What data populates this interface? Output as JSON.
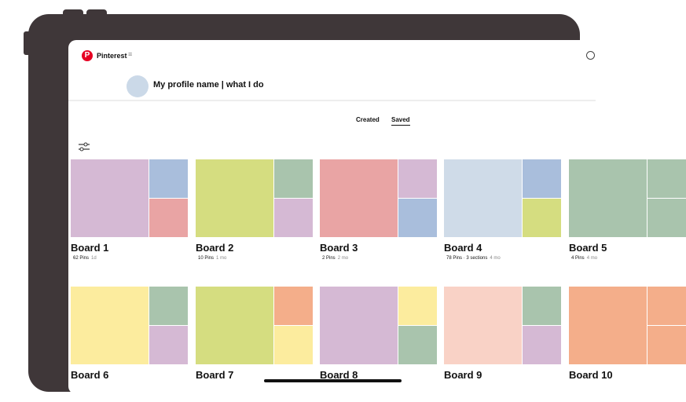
{
  "header": {
    "brand": "Pinterest",
    "logo_letter": "P",
    "menu_icon": "≡",
    "search_icon": "search-icon"
  },
  "profile": {
    "name": "My profile name | what I do"
  },
  "tabs": [
    {
      "label": "Created",
      "active": false
    },
    {
      "label": "Saved",
      "active": true
    }
  ],
  "filter_icon": "sliders-icon",
  "boards": [
    {
      "name": "Board 1",
      "pins": "62 Pins",
      "age": "1d",
      "colors": [
        "#d5b9d4",
        "#a9bedc",
        "#e9a4a4"
      ]
    },
    {
      "name": "Board 2",
      "pins": "10 Pins",
      "age": "1 mo",
      "colors": [
        "#d5dd80",
        "#a9c4ad",
        "#d5b9d4"
      ]
    },
    {
      "name": "Board 3",
      "pins": "2 Pins",
      "age": "2 mo",
      "colors": [
        "#e9a4a4",
        "#d5b9d4",
        "#a9bedc"
      ]
    },
    {
      "name": "Board 4",
      "pins": "78 Pins · 3 sections",
      "age": "4 mo",
      "colors": [
        "#cfdbe8",
        "#a9bedc",
        "#d5dd80"
      ]
    },
    {
      "name": "Board 5",
      "pins": "4 Pins",
      "age": "4 mo",
      "colors": [
        "#a9c4ad",
        "#a9c4ad",
        "#a9c4ad"
      ]
    },
    {
      "name": "Board 6",
      "pins": "",
      "age": "",
      "colors": [
        "#fcec9e",
        "#a9c4ad",
        "#d5b9d4"
      ]
    },
    {
      "name": "Board 7",
      "pins": "",
      "age": "",
      "colors": [
        "#d5dd80",
        "#f4ae8a",
        "#fcec9e"
      ]
    },
    {
      "name": "Board 8",
      "pins": "",
      "age": "",
      "colors": [
        "#d5b9d4",
        "#fcec9e",
        "#a9c4ad"
      ]
    },
    {
      "name": "Board 9",
      "pins": "",
      "age": "",
      "colors": [
        "#f9d2c6",
        "#a9c4ad",
        "#d5b9d4"
      ]
    },
    {
      "name": "Board 10",
      "pins": "",
      "age": "",
      "colors": [
        "#f4ae8a",
        "#f4ae8a",
        "#f4ae8a"
      ]
    }
  ]
}
